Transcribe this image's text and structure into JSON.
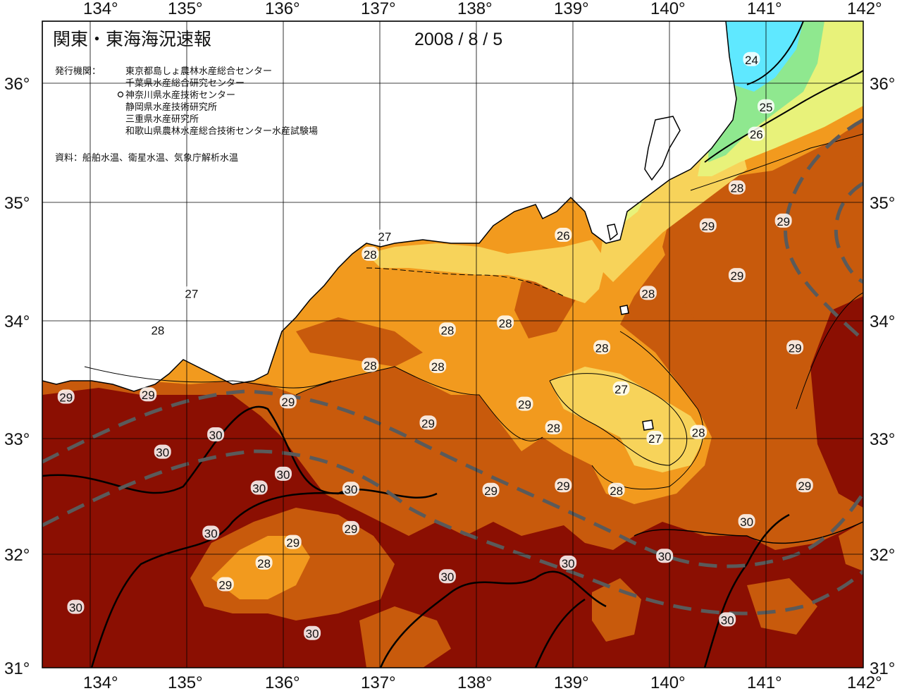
{
  "header": {
    "title": "関東・東海海況速報",
    "date": "2008 / 8 / 5",
    "issuer_label": "発行機関：",
    "issuers": [
      "東京都島しょ農林水産総合センター",
      "千葉県水産総合研究センター",
      "神奈川県水産技術センター",
      "静岡県水産技術研究所",
      "三重県水産研究所",
      "和歌山県農林水産総合技術センター水産試験場"
    ],
    "source": "資料：船舶水温、衛星水温、気象庁解析水温"
  },
  "axes": {
    "lon_labels": [
      "134°",
      "135°",
      "136°",
      "137°",
      "138°",
      "139°",
      "140°",
      "141°",
      "142°"
    ],
    "lat_labels": [
      "36°",
      "35°",
      "34°",
      "33°",
      "32°",
      "31°"
    ]
  },
  "colors": {
    "sst_24": "#5fe8ff",
    "sst_25": "#8fe88f",
    "sst_26": "#e8f27a",
    "sst_27": "#f7d35a",
    "sst_28": "#f29a1e",
    "sst_29": "#c85a0c",
    "sst_30": "#8b0f02",
    "land": "#ffffff",
    "kuroshio_axis": "#5a5a5a"
  },
  "contour_labels": [
    {
      "text": "24",
      "lon": 140.85,
      "lat": 36.2
    },
    {
      "text": "25",
      "lon": 141.0,
      "lat": 35.8
    },
    {
      "text": "26",
      "lon": 140.9,
      "lat": 35.57
    },
    {
      "text": "28",
      "lon": 140.7,
      "lat": 35.12
    },
    {
      "text": "29",
      "lon": 141.18,
      "lat": 34.84
    },
    {
      "text": "29",
      "lon": 140.4,
      "lat": 34.8
    },
    {
      "text": "26",
      "lon": 138.9,
      "lat": 34.72
    },
    {
      "text": "27",
      "lon": 137.05,
      "lat": 34.71
    },
    {
      "text": "28",
      "lon": 136.9,
      "lat": 34.56
    },
    {
      "text": "27",
      "lon": 135.05,
      "lat": 34.23
    },
    {
      "text": "28",
      "lon": 134.7,
      "lat": 33.92
    },
    {
      "text": "28",
      "lon": 139.78,
      "lat": 34.23
    },
    {
      "text": "29",
      "lon": 140.7,
      "lat": 34.38
    },
    {
      "text": "28",
      "lon": 138.3,
      "lat": 33.98
    },
    {
      "text": "28",
      "lon": 137.7,
      "lat": 33.92
    },
    {
      "text": "28",
      "lon": 139.3,
      "lat": 33.77
    },
    {
      "text": "29",
      "lon": 141.3,
      "lat": 33.77
    },
    {
      "text": "28",
      "lon": 136.9,
      "lat": 33.62
    },
    {
      "text": "28",
      "lon": 137.6,
      "lat": 33.61
    },
    {
      "text": "27",
      "lon": 139.5,
      "lat": 33.42
    },
    {
      "text": "29",
      "lon": 133.75,
      "lat": 33.35
    },
    {
      "text": "29",
      "lon": 134.6,
      "lat": 33.37
    },
    {
      "text": "29",
      "lon": 136.05,
      "lat": 33.31
    },
    {
      "text": "29",
      "lon": 138.5,
      "lat": 33.29
    },
    {
      "text": "29",
      "lon": 137.5,
      "lat": 33.13
    },
    {
      "text": "28",
      "lon": 138.8,
      "lat": 33.09
    },
    {
      "text": "28",
      "lon": 140.3,
      "lat": 33.05
    },
    {
      "text": "27",
      "lon": 139.85,
      "lat": 33.0
    },
    {
      "text": "30",
      "lon": 135.3,
      "lat": 33.03
    },
    {
      "text": "30",
      "lon": 134.75,
      "lat": 32.88
    },
    {
      "text": "30",
      "lon": 136.0,
      "lat": 32.69
    },
    {
      "text": "29",
      "lon": 138.9,
      "lat": 32.59
    },
    {
      "text": "30",
      "lon": 135.75,
      "lat": 32.57
    },
    {
      "text": "30",
      "lon": 136.7,
      "lat": 32.56
    },
    {
      "text": "29",
      "lon": 138.15,
      "lat": 32.55
    },
    {
      "text": "28",
      "lon": 139.45,
      "lat": 32.55
    },
    {
      "text": "29",
      "lon": 141.4,
      "lat": 32.59
    },
    {
      "text": "30",
      "lon": 140.8,
      "lat": 32.28
    },
    {
      "text": "30",
      "lon": 135.25,
      "lat": 32.18
    },
    {
      "text": "29",
      "lon": 136.7,
      "lat": 32.22
    },
    {
      "text": "29",
      "lon": 136.1,
      "lat": 32.1
    },
    {
      "text": "30",
      "lon": 139.95,
      "lat": 31.98
    },
    {
      "text": "28",
      "lon": 135.8,
      "lat": 31.92
    },
    {
      "text": "30",
      "lon": 138.95,
      "lat": 31.92
    },
    {
      "text": "30",
      "lon": 137.7,
      "lat": 31.8
    },
    {
      "text": "29",
      "lon": 135.4,
      "lat": 31.73
    },
    {
      "text": "30",
      "lon": 133.85,
      "lat": 31.53
    },
    {
      "text": "30",
      "lon": 140.6,
      "lat": 31.42
    },
    {
      "text": "30",
      "lon": 136.3,
      "lat": 31.3
    }
  ]
}
